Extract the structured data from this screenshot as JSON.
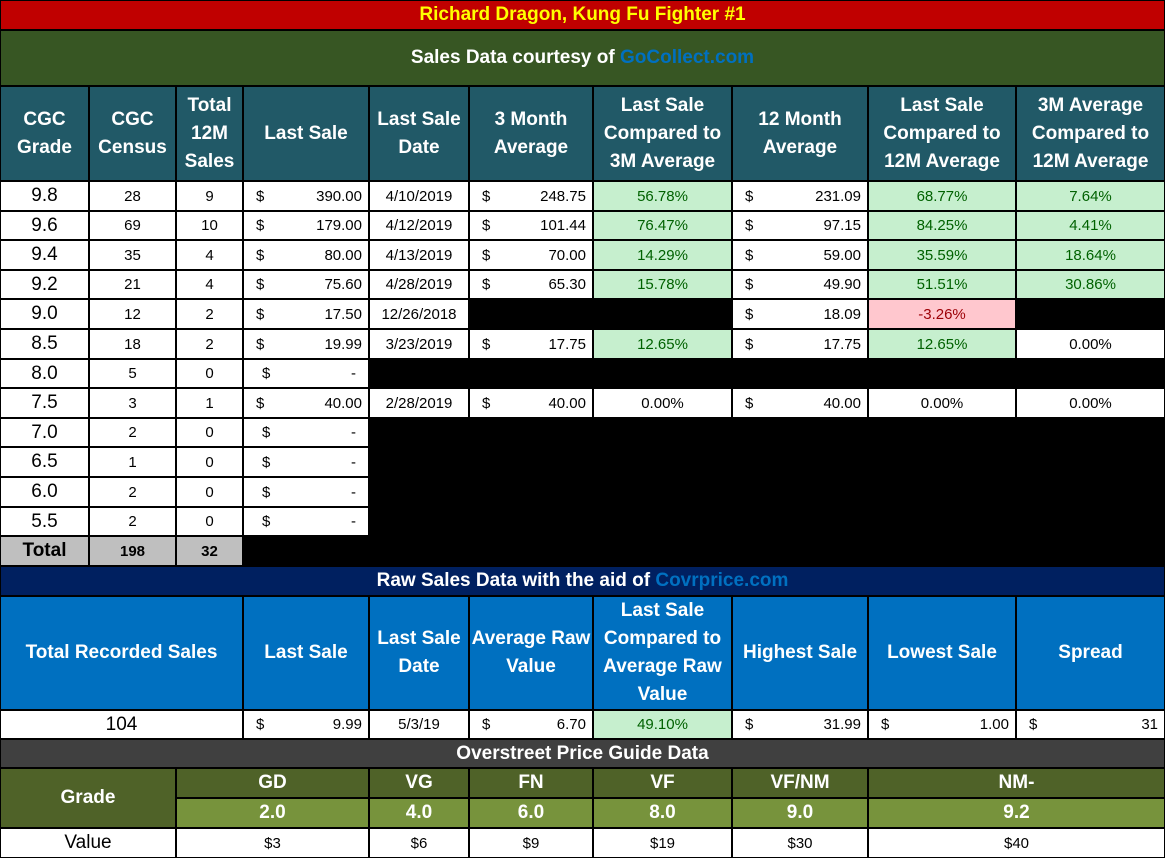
{
  "title": "Richard Dragon, Kung Fu Fighter #1",
  "sales_credit": {
    "prefix": "Sales Data courtesy of ",
    "source": "GoCollect.com"
  },
  "cgc_headers": [
    "CGC Grade",
    "CGC Census",
    "Total 12M Sales",
    "Last Sale",
    "Last Sale Date",
    "3 Month Average",
    "Last Sale Compared to 3M Average",
    "12 Month Average",
    "Last Sale Compared to 12M Average",
    "3M Average Compared to 12M Average"
  ],
  "currency_symbol": "$",
  "cgc_rows": [
    {
      "grade": "9.8",
      "census": "28",
      "sales": "9",
      "last_sale": "390.00",
      "date": "4/10/2019",
      "avg3": "248.75",
      "cmp3": "56.78%",
      "avg12": "231.09",
      "cmp12": "68.77%",
      "cmp3v12": "7.64%"
    },
    {
      "grade": "9.6",
      "census": "69",
      "sales": "10",
      "last_sale": "179.00",
      "date": "4/12/2019",
      "avg3": "101.44",
      "cmp3": "76.47%",
      "avg12": "97.15",
      "cmp12": "84.25%",
      "cmp3v12": "4.41%"
    },
    {
      "grade": "9.4",
      "census": "35",
      "sales": "4",
      "last_sale": "80.00",
      "date": "4/13/2019",
      "avg3": "70.00",
      "cmp3": "14.29%",
      "avg12": "59.00",
      "cmp12": "35.59%",
      "cmp3v12": "18.64%"
    },
    {
      "grade": "9.2",
      "census": "21",
      "sales": "4",
      "last_sale": "75.60",
      "date": "4/28/2019",
      "avg3": "65.30",
      "cmp3": "15.78%",
      "avg12": "49.90",
      "cmp12": "51.51%",
      "cmp3v12": "30.86%"
    },
    {
      "grade": "9.0",
      "census": "12",
      "sales": "2",
      "last_sale": "17.50",
      "date": "12/26/2018",
      "avg3": null,
      "cmp3": null,
      "avg12": "18.09",
      "cmp12": "-3.26%",
      "cmp3v12": null
    },
    {
      "grade": "8.5",
      "census": "18",
      "sales": "2",
      "last_sale": "19.99",
      "date": "3/23/2019",
      "avg3": "17.75",
      "cmp3": "12.65%",
      "avg12": "17.75",
      "cmp12": "12.65%",
      "cmp3v12": "0.00%"
    },
    {
      "grade": "8.0",
      "census": "5",
      "sales": "0",
      "last_sale": "-",
      "date": null,
      "avg3": null,
      "cmp3": null,
      "avg12": null,
      "cmp12": null,
      "cmp3v12": null
    },
    {
      "grade": "7.5",
      "census": "3",
      "sales": "1",
      "last_sale": "40.00",
      "date": "2/28/2019",
      "avg3": "40.00",
      "cmp3": "0.00%",
      "avg12": "40.00",
      "cmp12": "0.00%",
      "cmp3v12": "0.00%"
    },
    {
      "grade": "7.0",
      "census": "2",
      "sales": "0",
      "last_sale": "-",
      "date": null,
      "avg3": null,
      "cmp3": null,
      "avg12": null,
      "cmp12": null,
      "cmp3v12": null
    },
    {
      "grade": "6.5",
      "census": "1",
      "sales": "0",
      "last_sale": "-",
      "date": null,
      "avg3": null,
      "cmp3": null,
      "avg12": null,
      "cmp12": null,
      "cmp3v12": null
    },
    {
      "grade": "6.0",
      "census": "2",
      "sales": "0",
      "last_sale": "-",
      "date": null,
      "avg3": null,
      "cmp3": null,
      "avg12": null,
      "cmp12": null,
      "cmp3v12": null
    },
    {
      "grade": "5.5",
      "census": "2",
      "sales": "0",
      "last_sale": "-",
      "date": null,
      "avg3": null,
      "cmp3": null,
      "avg12": null,
      "cmp12": null,
      "cmp3v12": null
    }
  ],
  "totals": {
    "label": "Total",
    "census": "198",
    "sales": "32"
  },
  "raw_credit": {
    "prefix": "Raw Sales Data with the aid of ",
    "source": "Covrprice.com"
  },
  "raw_headers": [
    "Total Recorded Sales",
    "Last Sale",
    "Last Sale Date",
    "Average Raw Value",
    "Last Sale Compared to Average Raw Value",
    "Highest Sale",
    "Lowest Sale",
    "Spread"
  ],
  "raw_row": {
    "total": "104",
    "last_sale": "9.99",
    "date": "5/3/19",
    "avg": "6.70",
    "cmp": "49.10%",
    "high": "31.99",
    "low": "1.00",
    "spread": "31"
  },
  "overstreet": {
    "title": "Overstreet Price Guide Data",
    "grade_label": "Grade",
    "value_label": "Value",
    "grades": [
      {
        "name": "GD",
        "num": "2.0",
        "value": "$3"
      },
      {
        "name": "VG",
        "num": "4.0",
        "value": "$6"
      },
      {
        "name": "FN",
        "num": "6.0",
        "value": "$9"
      },
      {
        "name": "VF",
        "num": "8.0",
        "value": "$19"
      },
      {
        "name": "VF/NM",
        "num": "9.0",
        "value": "$30"
      },
      {
        "name": "NM-",
        "num": "9.2",
        "value": "$40"
      }
    ]
  },
  "colors": {
    "title_band": "#c00000",
    "title_text": "#ffff00",
    "credit_band": "#375623",
    "header": "#215967",
    "raw_band": "#002060",
    "raw_header": "#0070c0",
    "over_band": "#404040",
    "positive": "#c6efce",
    "negative": "#ffc7ce"
  }
}
